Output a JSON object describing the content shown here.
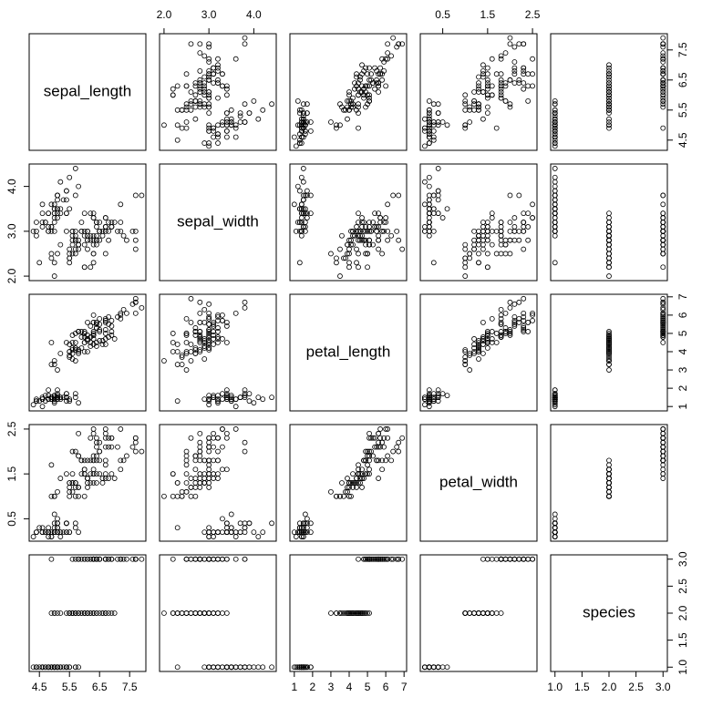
{
  "chart_data": {
    "type": "scatter_matrix",
    "color": "#000000",
    "variables": [
      {
        "name": "sepal_length",
        "lim": [
          4.16,
          8.04
        ],
        "ticks": [
          4.5,
          5.5,
          6.5,
          7.5
        ],
        "values": [
          5.1,
          4.9,
          4.7,
          4.6,
          5.0,
          5.4,
          4.6,
          5.0,
          4.4,
          4.9,
          5.4,
          4.8,
          4.8,
          4.3,
          5.8,
          5.7,
          5.4,
          5.1,
          5.7,
          5.1,
          5.4,
          5.1,
          4.6,
          5.1,
          4.8,
          5.0,
          5.0,
          5.2,
          5.2,
          4.7,
          4.8,
          5.4,
          5.2,
          5.5,
          4.9,
          5.0,
          5.5,
          4.9,
          4.4,
          5.1,
          5.0,
          4.5,
          4.4,
          5.0,
          5.1,
          4.8,
          5.1,
          4.6,
          5.3,
          5.0,
          7.0,
          6.4,
          6.9,
          5.5,
          6.5,
          5.7,
          6.3,
          4.9,
          6.6,
          5.2,
          5.0,
          5.9,
          6.0,
          6.1,
          5.6,
          6.7,
          5.6,
          5.8,
          6.2,
          5.6,
          5.9,
          6.1,
          6.3,
          6.1,
          6.4,
          6.6,
          6.8,
          6.7,
          6.0,
          5.7,
          5.5,
          5.5,
          5.8,
          6.0,
          5.4,
          6.0,
          6.7,
          6.3,
          5.6,
          5.5,
          5.5,
          6.1,
          5.8,
          5.0,
          5.6,
          5.7,
          5.7,
          6.2,
          5.1,
          5.7,
          6.3,
          5.8,
          7.1,
          6.3,
          6.5,
          7.6,
          4.9,
          7.3,
          6.7,
          7.2,
          6.5,
          6.4,
          6.8,
          5.7,
          5.8,
          6.4,
          6.5,
          7.7,
          7.7,
          6.0,
          6.9,
          5.6,
          7.7,
          6.3,
          6.7,
          7.2,
          6.2,
          6.1,
          6.4,
          7.2,
          7.4,
          7.9,
          6.4,
          6.3,
          6.1,
          7.7,
          6.3,
          6.4,
          6.0,
          6.9,
          6.7,
          6.9,
          5.8,
          6.8,
          6.7,
          6.7,
          6.3,
          6.5,
          6.2,
          5.9
        ]
      },
      {
        "name": "sepal_width",
        "lim": [
          1.9,
          4.5
        ],
        "ticks": [
          {
            "value": 2,
            "label": "2.0"
          },
          {
            "value": 3,
            "label": "3.0"
          },
          {
            "value": 4,
            "label": "4.0"
          }
        ],
        "values": [
          3.5,
          3.0,
          3.2,
          3.1,
          3.6,
          3.9,
          3.4,
          3.4,
          2.9,
          3.1,
          3.7,
          3.4,
          3.0,
          3.0,
          4.0,
          4.4,
          3.9,
          3.5,
          3.8,
          3.8,
          3.4,
          3.7,
          3.6,
          3.3,
          3.4,
          3.0,
          3.4,
          3.5,
          3.4,
          3.2,
          3.1,
          3.4,
          4.1,
          4.2,
          3.1,
          3.2,
          3.5,
          3.6,
          3.0,
          3.4,
          3.5,
          2.3,
          3.2,
          3.5,
          3.8,
          3.0,
          3.8,
          3.2,
          3.7,
          3.3,
          3.2,
          3.2,
          3.1,
          2.3,
          2.8,
          2.8,
          3.3,
          2.4,
          2.9,
          2.7,
          2.0,
          3.0,
          2.2,
          2.9,
          2.9,
          3.1,
          3.0,
          2.7,
          2.2,
          2.5,
          3.2,
          2.8,
          2.5,
          2.8,
          2.9,
          3.0,
          2.8,
          3.0,
          2.9,
          2.6,
          2.4,
          2.4,
          2.7,
          2.7,
          3.0,
          3.4,
          3.1,
          2.3,
          3.0,
          2.5,
          2.6,
          3.0,
          2.6,
          2.3,
          2.7,
          3.0,
          2.9,
          2.9,
          2.5,
          2.8,
          3.3,
          2.7,
          3.0,
          2.9,
          3.0,
          3.0,
          2.5,
          2.9,
          2.5,
          3.6,
          3.2,
          2.7,
          3.0,
          2.5,
          2.8,
          3.2,
          3.0,
          3.8,
          2.6,
          2.2,
          3.2,
          2.8,
          2.8,
          2.7,
          3.3,
          3.2,
          2.8,
          3.0,
          2.8,
          3.0,
          2.8,
          3.8,
          2.8,
          2.8,
          2.6,
          3.0,
          3.4,
          3.1,
          3.0,
          3.1,
          3.1,
          3.1,
          2.7,
          3.2,
          3.3,
          3.0,
          2.5,
          3.0,
          3.4,
          3.0
        ]
      },
      {
        "name": "petal_length",
        "lim": [
          0.76,
          7.14
        ],
        "ticks": [
          1,
          2,
          3,
          4,
          5,
          6,
          7
        ],
        "values": [
          1.4,
          1.4,
          1.3,
          1.5,
          1.4,
          1.7,
          1.4,
          1.5,
          1.4,
          1.5,
          1.5,
          1.6,
          1.4,
          1.1,
          1.2,
          1.5,
          1.3,
          1.4,
          1.7,
          1.5,
          1.7,
          1.5,
          1.0,
          1.7,
          1.9,
          1.6,
          1.6,
          1.5,
          1.4,
          1.6,
          1.6,
          1.5,
          1.5,
          1.4,
          1.5,
          1.2,
          1.3,
          1.4,
          1.3,
          1.5,
          1.3,
          1.3,
          1.3,
          1.6,
          1.9,
          1.4,
          1.6,
          1.4,
          1.5,
          1.4,
          4.7,
          4.5,
          4.9,
          4.0,
          4.6,
          4.5,
          4.7,
          3.3,
          4.6,
          3.9,
          3.5,
          4.2,
          4.0,
          4.7,
          3.6,
          4.4,
          4.5,
          4.1,
          4.5,
          3.9,
          4.8,
          4.0,
          4.9,
          4.7,
          4.3,
          4.4,
          4.8,
          5.0,
          4.5,
          3.5,
          3.8,
          3.7,
          3.9,
          5.1,
          4.5,
          4.5,
          4.7,
          4.4,
          4.1,
          4.0,
          4.4,
          4.6,
          4.0,
          3.3,
          4.2,
          4.2,
          4.2,
          4.3,
          3.0,
          4.1,
          6.0,
          5.1,
          5.9,
          5.6,
          5.8,
          6.6,
          4.5,
          6.3,
          5.8,
          6.1,
          5.1,
          5.3,
          5.5,
          5.0,
          5.1,
          5.3,
          5.5,
          6.7,
          6.9,
          5.0,
          5.7,
          4.9,
          6.7,
          4.9,
          5.7,
          6.0,
          4.8,
          4.9,
          5.6,
          5.8,
          6.1,
          6.4,
          5.6,
          5.1,
          5.6,
          6.1,
          5.6,
          5.5,
          4.8,
          5.4,
          5.6,
          5.1,
          5.1,
          5.9,
          5.7,
          5.2,
          5.0,
          5.2,
          5.4,
          5.1
        ]
      },
      {
        "name": "petal_width",
        "lim": [
          0.0,
          2.6
        ],
        "ticks": [
          0.5,
          1.5,
          2.5
        ],
        "values": [
          0.2,
          0.2,
          0.2,
          0.2,
          0.2,
          0.4,
          0.3,
          0.2,
          0.2,
          0.1,
          0.2,
          0.2,
          0.1,
          0.1,
          0.2,
          0.4,
          0.4,
          0.3,
          0.3,
          0.3,
          0.2,
          0.4,
          0.2,
          0.5,
          0.2,
          0.2,
          0.4,
          0.2,
          0.2,
          0.2,
          0.2,
          0.4,
          0.1,
          0.2,
          0.2,
          0.2,
          0.2,
          0.1,
          0.2,
          0.2,
          0.3,
          0.3,
          0.2,
          0.6,
          0.4,
          0.3,
          0.2,
          0.2,
          0.2,
          0.2,
          1.4,
          1.5,
          1.5,
          1.3,
          1.5,
          1.3,
          1.6,
          1.0,
          1.3,
          1.4,
          1.0,
          1.5,
          1.0,
          1.4,
          1.3,
          1.4,
          1.5,
          1.0,
          1.5,
          1.1,
          1.8,
          1.3,
          1.5,
          1.2,
          1.3,
          1.4,
          1.4,
          1.7,
          1.5,
          1.0,
          1.1,
          1.0,
          1.2,
          1.6,
          1.5,
          1.6,
          1.5,
          1.3,
          1.3,
          1.3,
          1.2,
          1.4,
          1.2,
          1.0,
          1.3,
          1.2,
          1.3,
          1.3,
          1.1,
          1.3,
          2.5,
          1.9,
          2.1,
          1.8,
          2.2,
          2.1,
          1.7,
          1.8,
          1.8,
          2.5,
          2.0,
          1.9,
          2.1,
          2.0,
          2.4,
          2.3,
          1.8,
          2.2,
          2.3,
          1.5,
          2.3,
          2.0,
          2.0,
          1.8,
          2.1,
          1.8,
          1.8,
          1.8,
          2.1,
          1.6,
          1.9,
          2.0,
          2.2,
          1.5,
          1.4,
          2.3,
          2.4,
          1.8,
          1.8,
          2.1,
          2.4,
          2.3,
          1.9,
          2.3,
          2.5,
          2.3,
          1.9,
          2.0,
          2.3,
          1.8
        ]
      },
      {
        "name": "species",
        "lim": [
          0.92,
          3.08
        ],
        "ticks": [
          {
            "value": 1,
            "label": "1.0"
          },
          1.5,
          {
            "value": 2,
            "label": "2.0"
          },
          2.5,
          {
            "value": 3,
            "label": "3.0"
          }
        ],
        "values": [
          1,
          1,
          1,
          1,
          1,
          1,
          1,
          1,
          1,
          1,
          1,
          1,
          1,
          1,
          1,
          1,
          1,
          1,
          1,
          1,
          1,
          1,
          1,
          1,
          1,
          1,
          1,
          1,
          1,
          1,
          1,
          1,
          1,
          1,
          1,
          1,
          1,
          1,
          1,
          1,
          1,
          1,
          1,
          1,
          1,
          1,
          1,
          1,
          1,
          1,
          2,
          2,
          2,
          2,
          2,
          2,
          2,
          2,
          2,
          2,
          2,
          2,
          2,
          2,
          2,
          2,
          2,
          2,
          2,
          2,
          2,
          2,
          2,
          2,
          2,
          2,
          2,
          2,
          2,
          2,
          2,
          2,
          2,
          2,
          2,
          2,
          2,
          2,
          2,
          2,
          2,
          2,
          2,
          2,
          2,
          2,
          2,
          2,
          2,
          2,
          3,
          3,
          3,
          3,
          3,
          3,
          3,
          3,
          3,
          3,
          3,
          3,
          3,
          3,
          3,
          3,
          3,
          3,
          3,
          3,
          3,
          3,
          3,
          3,
          3,
          3,
          3,
          3,
          3,
          3,
          3,
          3,
          3,
          3,
          3,
          3,
          3,
          3,
          3,
          3,
          3,
          3,
          3,
          3,
          3,
          3,
          3,
          3,
          3,
          3
        ]
      }
    ]
  }
}
